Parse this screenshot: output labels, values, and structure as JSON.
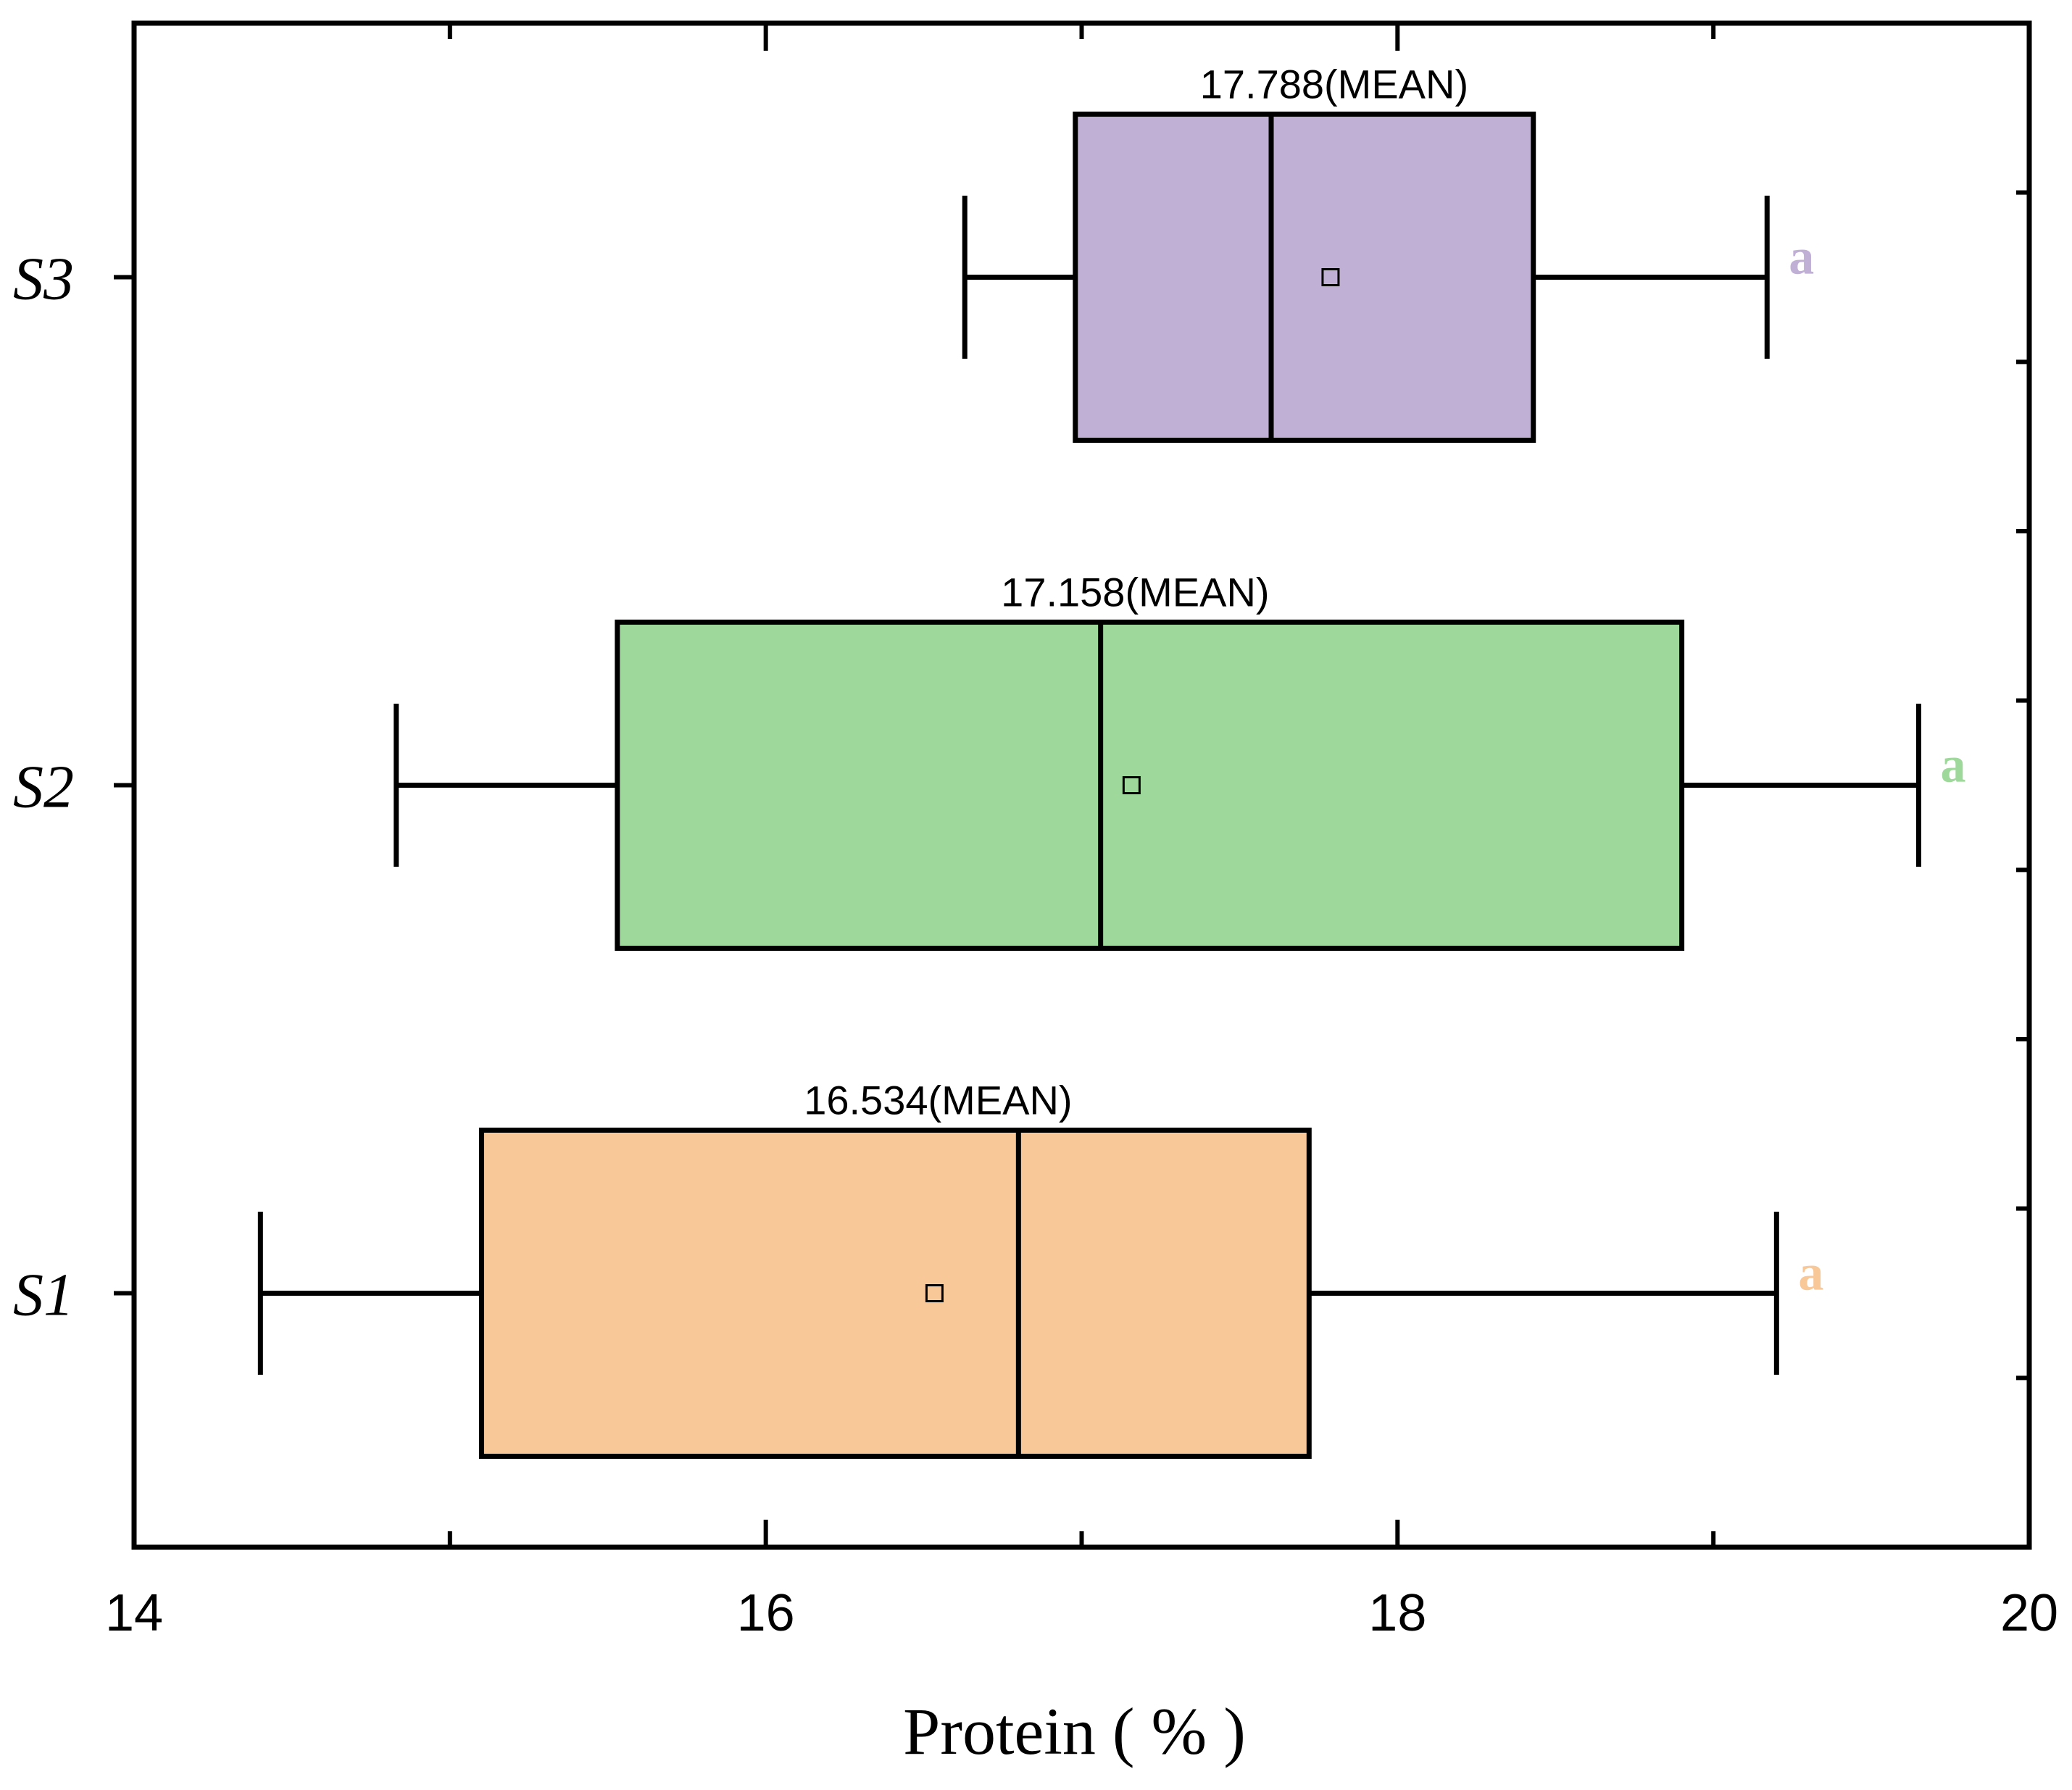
{
  "chart_data": {
    "type": "boxplot",
    "orientation": "horizontal",
    "xlabel": "Protein ( % )",
    "xlim": [
      14,
      20
    ],
    "x_ticks": [
      "14",
      "16",
      "18",
      "20"
    ],
    "series": [
      {
        "name": "S1",
        "min": 14.4,
        "q1": 15.1,
        "median": 16.8,
        "q3": 17.72,
        "max": 19.2,
        "mean": 16.534,
        "mean_label": "16.534(MEAN)",
        "significance": "a",
        "color": "#F9C898"
      },
      {
        "name": "S2",
        "min": 14.83,
        "q1": 15.53,
        "median": 17.06,
        "q3": 18.9,
        "max": 19.65,
        "mean": 17.158,
        "mean_label": "17.158(MEAN)",
        "significance": "a",
        "color": "#9ED89A"
      },
      {
        "name": "S3",
        "min": 16.63,
        "q1": 16.98,
        "median": 17.6,
        "q3": 18.43,
        "max": 19.17,
        "mean": 17.788,
        "mean_label": "17.788(MEAN)",
        "significance": "a",
        "color": "#C0B0D6"
      }
    ]
  }
}
